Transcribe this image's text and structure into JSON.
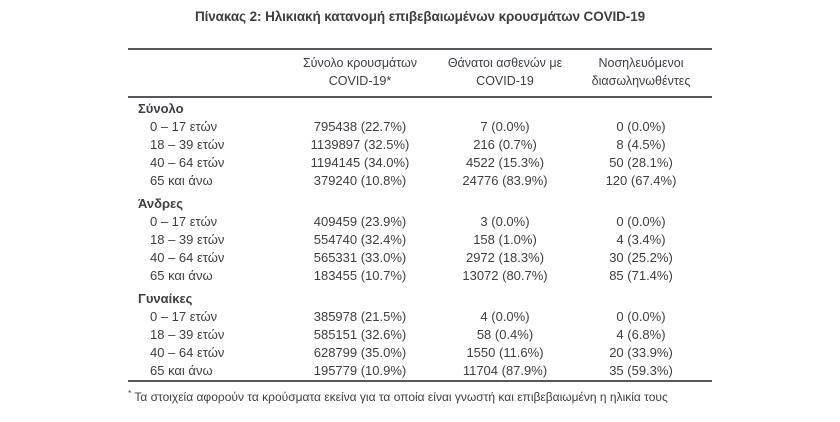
{
  "page": {
    "title": "Πίνακας 2: Ηλικιακή κατανομή επιβεβαιωμένων κρουσμάτων COVID-19",
    "footnote_marker": "*",
    "footnote": "Τα στοιχεία αφορούν τα κρούσματα εκείνα για τα οποία είναι γνωστή και επιβεβαιωμένη η ηλικία τους"
  },
  "colors": {
    "text": "#3c4046",
    "rule": "#54575b",
    "background": "#ffffff"
  },
  "table": {
    "columns": [
      {
        "line1": "",
        "line2": ""
      },
      {
        "line1": "Σύνολο κρουσμάτων",
        "line2": "COVID-19*"
      },
      {
        "line1": "Θάνατοι ασθενών με",
        "line2": "COVID-19"
      },
      {
        "line1": "Νοσηλευόμενοι",
        "line2": "διασωληνωθέντες"
      }
    ],
    "sections": [
      {
        "label": "Σύνολο",
        "rows": [
          {
            "age": "0 – 17 ετών",
            "values": [
              "795438 (22.7%)",
              "7 (0.0%)",
              "0 (0.0%)"
            ]
          },
          {
            "age": "18 – 39 ετών",
            "values": [
              "1139897 (32.5%)",
              "216 (0.7%)",
              "8 (4.5%)"
            ]
          },
          {
            "age": "40 – 64 ετών",
            "values": [
              "1194145 (34.0%)",
              "4522 (15.3%)",
              "50 (28.1%)"
            ]
          },
          {
            "age": "65 και άνω",
            "values": [
              "379240 (10.8%)",
              "24776 (83.9%)",
              "120 (67.4%)"
            ]
          }
        ]
      },
      {
        "label": "Άνδρες",
        "rows": [
          {
            "age": "0 – 17 ετών",
            "values": [
              "409459 (23.9%)",
              "3 (0.0%)",
              "0 (0.0%)"
            ]
          },
          {
            "age": "18 – 39 ετών",
            "values": [
              "554740 (32.4%)",
              "158 (1.0%)",
              "4 (3.4%)"
            ]
          },
          {
            "age": "40 – 64 ετών",
            "values": [
              "565331 (33.0%)",
              "2972 (18.3%)",
              "30 (25.2%)"
            ]
          },
          {
            "age": "65 και άνω",
            "values": [
              "183455 (10.7%)",
              "13072 (80.7%)",
              "85 (71.4%)"
            ]
          }
        ]
      },
      {
        "label": "Γυναίκες",
        "rows": [
          {
            "age": "0 – 17 ετών",
            "values": [
              "385978 (21.5%)",
              "4 (0.0%)",
              "0 (0.0%)"
            ]
          },
          {
            "age": "18 – 39 ετών",
            "values": [
              "585151 (32.6%)",
              "58 (0.4%)",
              "4 (6.8%)"
            ]
          },
          {
            "age": "40 – 64 ετών",
            "values": [
              "628799 (35.0%)",
              "1550 (11.6%)",
              "20 (33.9%)"
            ]
          },
          {
            "age": "65 και άνω",
            "values": [
              "195779 (10.9%)",
              "11704 (87.9%)",
              "35 (59.3%)"
            ]
          }
        ]
      }
    ]
  }
}
